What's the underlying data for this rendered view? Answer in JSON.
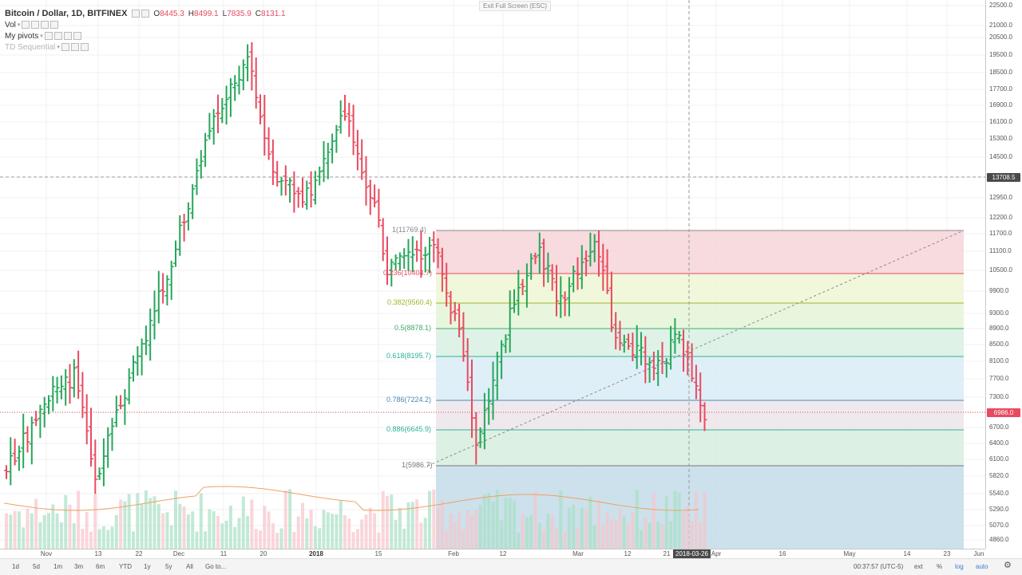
{
  "legend": {
    "symbol": "Bitcoin / Dollar, 1D, BITFINEX",
    "open_label": "O",
    "open": "8445.3",
    "high_label": "H",
    "high": "8499.1",
    "low_label": "L",
    "low": "7835.9",
    "close_label": "C",
    "close": "8131.1",
    "indicators": [
      "Vol",
      "My pivots",
      "TD Sequential"
    ]
  },
  "exit_fullscreen": "Exit Full Screen (ESC)",
  "right_axis": {
    "ticks": [
      "22500.0",
      "21000.0",
      "20500.0",
      "19500.0",
      "18500.0",
      "17700.0",
      "16900.0",
      "16100.0",
      "15300.0",
      "14500.0",
      "13700.0",
      "12950.0",
      "12200.0",
      "11700.0",
      "11100.0",
      "10500.0",
      "9900.0",
      "9300.0",
      "8900.0",
      "8500.0",
      "8100.0",
      "7700.0",
      "7300.0",
      "6900.0",
      "6700.0",
      "6400.0",
      "6100.0",
      "5820.0",
      "5540.0",
      "5290.0",
      "5070.0",
      "4860.0"
    ],
    "crosshair_price": "13708.5",
    "last_price": "6986.0"
  },
  "fib": {
    "levels": [
      {
        "label": "1(11769.4)",
        "color": "#888888"
      },
      {
        "label": "0.236(10404.7)",
        "color": "#e84a5f"
      },
      {
        "label": "0.382(9560.4)",
        "color": "#9ab82a"
      },
      {
        "label": "0.5(8878.1)",
        "color": "#3fae6a"
      },
      {
        "label": "0.618(8195.7)",
        "color": "#2db394"
      },
      {
        "label": "0.786(7224.2)",
        "color": "#4a8ab5"
      },
      {
        "label": "0.886(6645.9)",
        "color": "#2db394"
      },
      {
        "label": "1(5986.7)",
        "color": "#777777"
      }
    ]
  },
  "x_axis": {
    "ticks": [
      {
        "label": "Nov",
        "bold": false
      },
      {
        "label": "13",
        "bold": false
      },
      {
        "label": "22",
        "bold": false
      },
      {
        "label": "Dec",
        "bold": false
      },
      {
        "label": "11",
        "bold": false
      },
      {
        "label": "20",
        "bold": false
      },
      {
        "label": "2018",
        "bold": true
      },
      {
        "label": "15",
        "bold": false
      },
      {
        "label": "Feb",
        "bold": false
      },
      {
        "label": "12",
        "bold": false
      },
      {
        "label": "Mar",
        "bold": false
      },
      {
        "label": "12",
        "bold": false
      },
      {
        "label": "21",
        "bold": false
      },
      {
        "label": "Apr",
        "bold": false
      },
      {
        "label": "16",
        "bold": false
      },
      {
        "label": "May",
        "bold": false
      },
      {
        "label": "14",
        "bold": false
      },
      {
        "label": "23",
        "bold": false
      },
      {
        "label": "Jun",
        "bold": false
      }
    ],
    "crosshair_date": "2018-03-26"
  },
  "toolbar": {
    "ranges": [
      "1d",
      "5d",
      "1m",
      "3m",
      "6m",
      "YTD",
      "1y",
      "5y",
      "All"
    ],
    "goto": "Go to...",
    "clock": "00:37:57 (UTC-5)",
    "ext": "ext",
    "percent": "%",
    "log": "log",
    "auto": "auto",
    "gear": "gear-icon"
  },
  "colors": {
    "up": "#26a65b",
    "down": "#e84a5f",
    "up_volume": "#a8dfc4",
    "down_volume": "#f6c4cb"
  }
}
